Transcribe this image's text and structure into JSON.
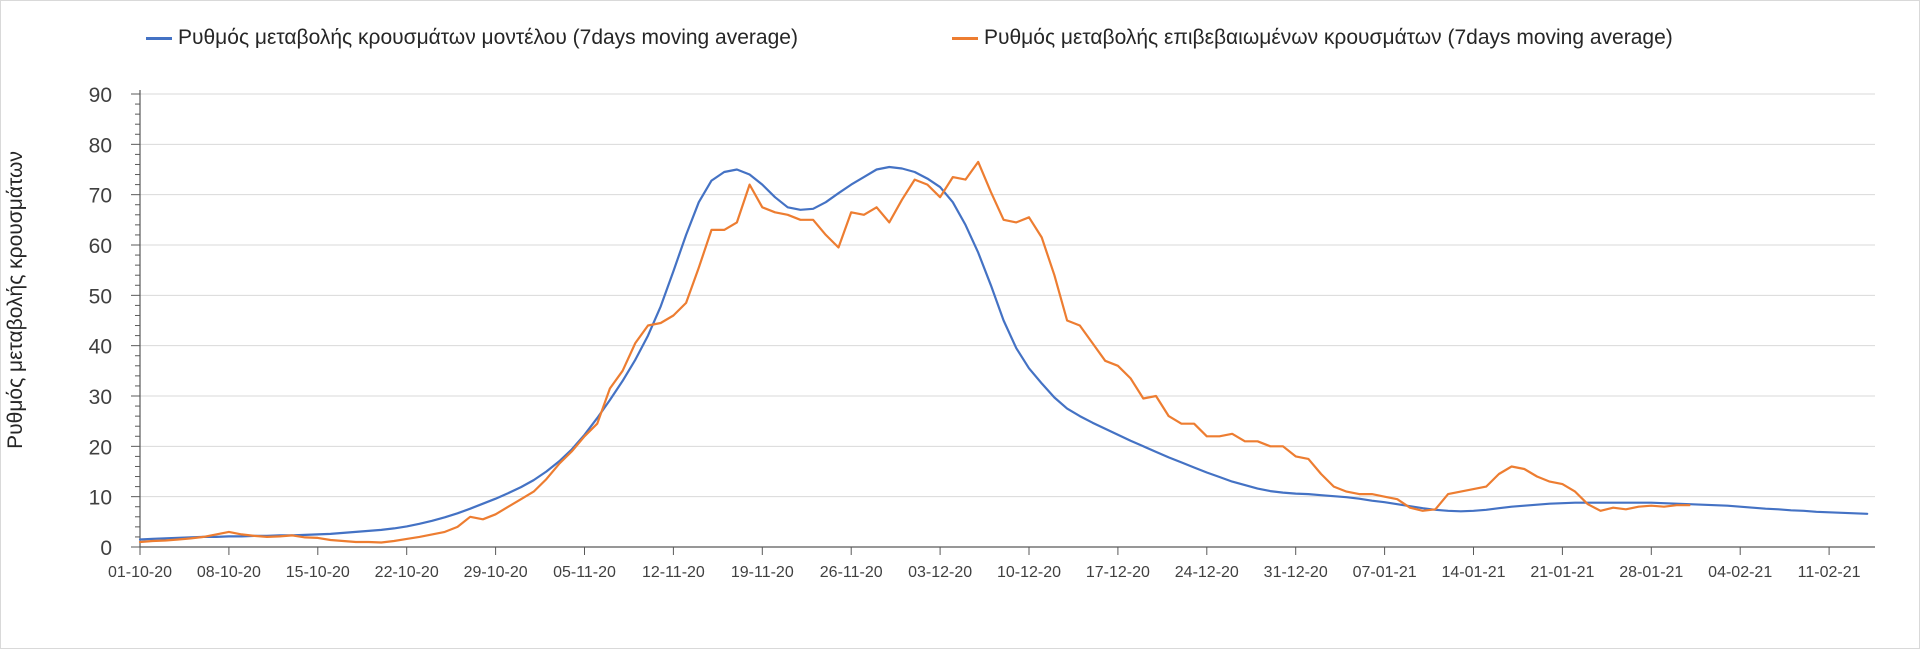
{
  "chart_data": {
    "type": "line",
    "title": "",
    "xlabel": "",
    "ylabel": "Ρυθμός μεταβολής κρουσμάτων",
    "ylim": [
      0,
      90
    ],
    "yticks": [
      0,
      10,
      20,
      30,
      40,
      50,
      60,
      70,
      80,
      90
    ],
    "x_start": "01-10-20",
    "x_count": 137,
    "xtick_labels": [
      "01-10-20",
      "08-10-20",
      "15-10-20",
      "22-10-20",
      "29-10-20",
      "05-11-20",
      "12-11-20",
      "19-11-20",
      "26-11-20",
      "03-12-20",
      "10-12-20",
      "17-12-20",
      "24-12-20",
      "31-12-20",
      "07-01-21",
      "14-01-21",
      "21-01-21",
      "28-01-21",
      "04-02-21",
      "11-02-21"
    ],
    "grid": true,
    "legend_position": "top",
    "series": [
      {
        "name": "Ρυθμός μεταβολής κρουσμάτων μοντέλου (7days moving average)",
        "color": "#4472c4",
        "values": [
          1.5,
          1.6,
          1.7,
          1.8,
          1.9,
          2.0,
          2.0,
          2.1,
          2.1,
          2.2,
          2.2,
          2.3,
          2.3,
          2.4,
          2.5,
          2.6,
          2.8,
          3.0,
          3.2,
          3.4,
          3.7,
          4.1,
          4.6,
          5.2,
          5.9,
          6.7,
          7.6,
          8.6,
          9.6,
          10.7,
          11.9,
          13.3,
          15.0,
          17.0,
          19.4,
          22.3,
          25.6,
          29.2,
          33.0,
          37.2,
          42.0,
          47.8,
          54.8,
          62.0,
          68.5,
          72.8,
          74.5,
          75.0,
          74.0,
          72.0,
          69.5,
          67.5,
          67.0,
          67.2,
          68.5,
          70.3,
          72.0,
          73.5,
          75.0,
          75.5,
          75.2,
          74.5,
          73.2,
          71.5,
          68.5,
          64.0,
          58.5,
          52.0,
          45.0,
          39.5,
          35.5,
          32.5,
          29.7,
          27.5,
          26.0,
          24.7,
          23.5,
          22.3,
          21.1,
          20.0,
          18.9,
          17.8,
          16.8,
          15.8,
          14.8,
          13.9,
          13.0,
          12.3,
          11.6,
          11.1,
          10.8,
          10.6,
          10.5,
          10.3,
          10.1,
          9.9,
          9.6,
          9.2,
          8.9,
          8.5,
          8.1,
          7.7,
          7.4,
          7.2,
          7.1,
          7.2,
          7.4,
          7.7,
          8.0,
          8.2,
          8.4,
          8.6,
          8.7,
          8.8,
          8.8,
          8.8,
          8.8,
          8.8,
          8.8,
          8.8,
          8.7,
          8.6,
          8.5,
          8.4,
          8.3,
          8.2,
          8.0,
          7.8,
          7.6,
          7.5,
          7.3,
          7.2,
          7.0,
          6.9,
          6.8,
          6.7,
          6.6
        ]
      },
      {
        "name": "Ρυθμός μεταβολής επιβεβαιωμένων κρουσμάτων (7days moving average)",
        "color": "#ed7d31",
        "values": [
          1.0,
          1.2,
          1.3,
          1.5,
          1.7,
          2.0,
          2.5,
          3.0,
          2.5,
          2.2,
          2.0,
          2.1,
          2.3,
          1.9,
          1.8,
          1.4,
          1.2,
          1.0,
          1.0,
          0.9,
          1.2,
          1.6,
          2.0,
          2.5,
          3.0,
          4.0,
          6.0,
          5.5,
          6.5,
          8.0,
          9.5,
          11.0,
          13.5,
          16.5,
          19.0,
          22.0,
          24.5,
          31.5,
          35.0,
          40.5,
          44.0,
          44.5,
          46.0,
          48.5,
          55.5,
          63.0,
          63.0,
          64.5,
          72.0,
          67.5,
          66.5,
          66.0,
          65.0,
          65.0,
          62.0,
          59.5,
          66.5,
          66.0,
          67.5,
          64.5,
          69.0,
          73.0,
          72.0,
          69.5,
          73.5,
          73.0,
          76.5,
          70.5,
          65.0,
          64.5,
          65.5,
          61.5,
          54.0,
          45.0,
          44.0,
          40.5,
          37.0,
          36.0,
          33.5,
          29.5,
          30.0,
          26.0,
          24.5,
          24.5,
          22.0,
          22.0,
          22.5,
          21.0,
          21.0,
          20.0,
          20.0,
          18.0,
          17.5,
          14.5,
          12.0,
          11.0,
          10.5,
          10.5,
          10.0,
          9.5,
          7.8,
          7.2,
          7.5,
          10.5,
          11.0,
          11.5,
          12.0,
          14.5,
          16.0,
          15.5,
          14.0,
          13.0,
          12.5,
          11.0,
          8.5,
          7.2,
          7.8,
          7.5,
          8.0,
          8.2,
          8.0,
          8.3,
          8.3
        ]
      }
    ]
  }
}
